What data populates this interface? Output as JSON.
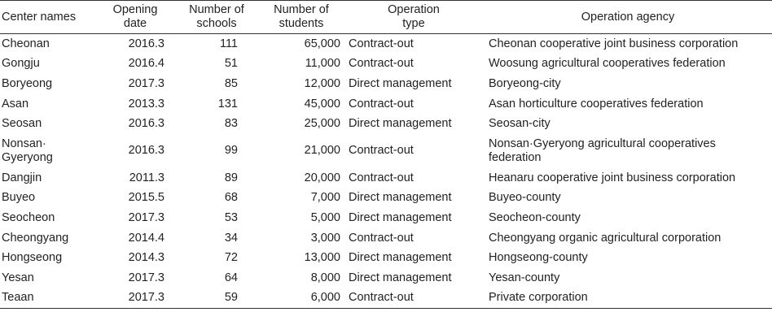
{
  "table": {
    "headers": {
      "name": "Center names",
      "date_line1": "Opening",
      "date_line2": "date",
      "schools_line1": "Number of",
      "schools_line2": "schools",
      "students_line1": "Number of",
      "students_line2": "students",
      "type_line1": "Operation",
      "type_line2": "type",
      "agency": "Operation agency"
    },
    "rows": [
      {
        "name": "Cheonan",
        "date": "2016.3",
        "schools": "111",
        "students": "65,000",
        "type": "Contract-out",
        "agency": "Cheonan cooperative joint business corporation"
      },
      {
        "name": "Gongju",
        "date": "2016.4",
        "schools": "51",
        "students": "11,000",
        "type": "Contract-out",
        "agency": "Woosung agricultural cooperatives federation"
      },
      {
        "name": "Boryeong",
        "date": "2017.3",
        "schools": "85",
        "students": "12,000",
        "type": "Direct management",
        "agency": "Boryeong-city"
      },
      {
        "name": "Asan",
        "date": "2013.3",
        "schools": "131",
        "students": "45,000",
        "type": "Contract-out",
        "agency": "Asan horticulture cooperatives federation"
      },
      {
        "name": "Seosan",
        "date": "2016.3",
        "schools": "83",
        "students": "25,000",
        "type": "Direct management",
        "agency": "Seosan-city"
      },
      {
        "name_line1": "Nonsan·",
        "name_line2": "Gyeryong",
        "date": "2016.3",
        "schools": "99",
        "students": "21,000",
        "type": "Contract-out",
        "agency_line1": "Nonsan·Gyeryong agricultural cooperatives",
        "agency_line2": "federation"
      },
      {
        "name": "Dangjin",
        "date": "2011.3",
        "schools": "89",
        "students": "20,000",
        "type": "Contract-out",
        "agency": "Heanaru cooperative joint business corporation"
      },
      {
        "name": "Buyeo",
        "date": "2015.5",
        "schools": "68",
        "students": "7,000",
        "type": "Direct management",
        "agency": "Buyeo-county"
      },
      {
        "name": "Seocheon",
        "date": "2017.3",
        "schools": "53",
        "students": "5,000",
        "type": "Direct management",
        "agency": "Seocheon-county"
      },
      {
        "name": "Cheongyang",
        "date": "2014.4",
        "schools": "34",
        "students": "3,000",
        "type": "Contract-out",
        "agency": "Cheongyang organic agricultural corporation"
      },
      {
        "name": "Hongseong",
        "date": "2014.3",
        "schools": "72",
        "students": "13,000",
        "type": "Direct management",
        "agency": "Hongseong-county"
      },
      {
        "name": "Yesan",
        "date": "2017.3",
        "schools": "64",
        "students": "8,000",
        "type": "Direct management",
        "agency": "Yesan-county"
      },
      {
        "name": "Teaan",
        "date": "2017.3",
        "schools": "59",
        "students": "6,000",
        "type": "Contract-out",
        "agency": "Private corporation"
      }
    ]
  }
}
